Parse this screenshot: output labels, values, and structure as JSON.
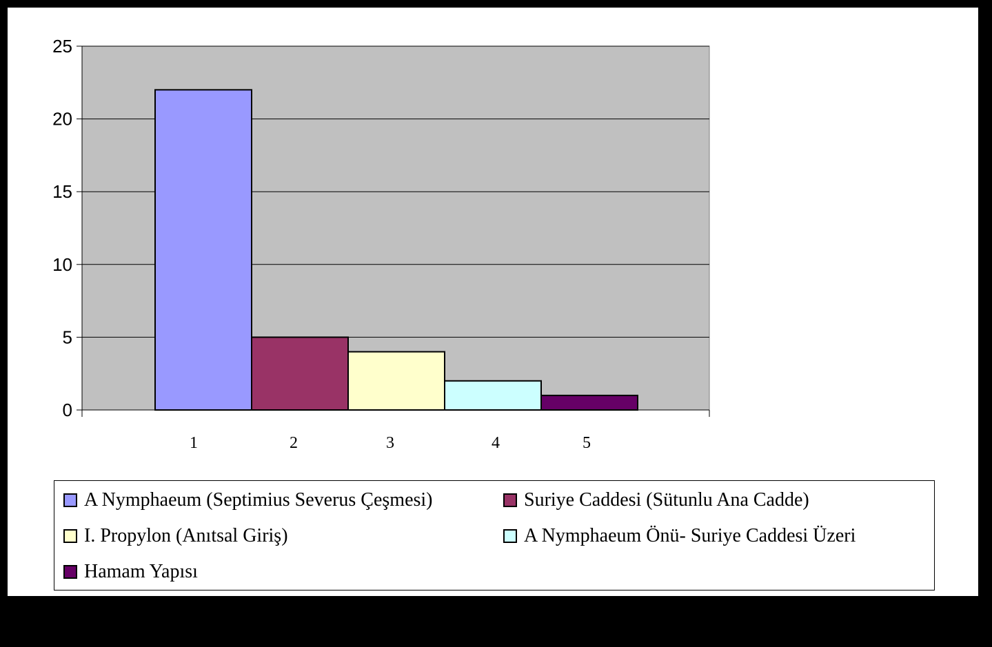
{
  "chart_data": {
    "type": "bar",
    "categories": [
      "1",
      "2",
      "3",
      "4",
      "5"
    ],
    "series": [
      {
        "name": "A Nymphaeum (Septimius Severus Çeşmesi)",
        "values": [
          22,
          null,
          null,
          null,
          null
        ],
        "color": "#9999ff"
      },
      {
        "name": "Suriye Caddesi (Sütunlu Ana Cadde)",
        "values": [
          null,
          5,
          null,
          null,
          null
        ],
        "color": "#993366"
      },
      {
        "name": "I. Propylon (Anıtsal Giriş)",
        "values": [
          null,
          null,
          4,
          null,
          null
        ],
        "color": "#ffffcc"
      },
      {
        "name": "A Nymphaeum  Önü- Suriye Caddesi Üzeri",
        "values": [
          null,
          null,
          null,
          2,
          null
        ],
        "color": "#ccffff"
      },
      {
        "name": "Hamam Yapısı",
        "values": [
          null,
          null,
          null,
          null,
          1
        ],
        "color": "#660066"
      }
    ],
    "yticks": [
      "0",
      "5",
      "10",
      "15",
      "20",
      "25"
    ],
    "ylim": [
      0,
      25
    ],
    "grid": true,
    "plot_background": "#c0c0c0",
    "legend_position": "bottom"
  }
}
